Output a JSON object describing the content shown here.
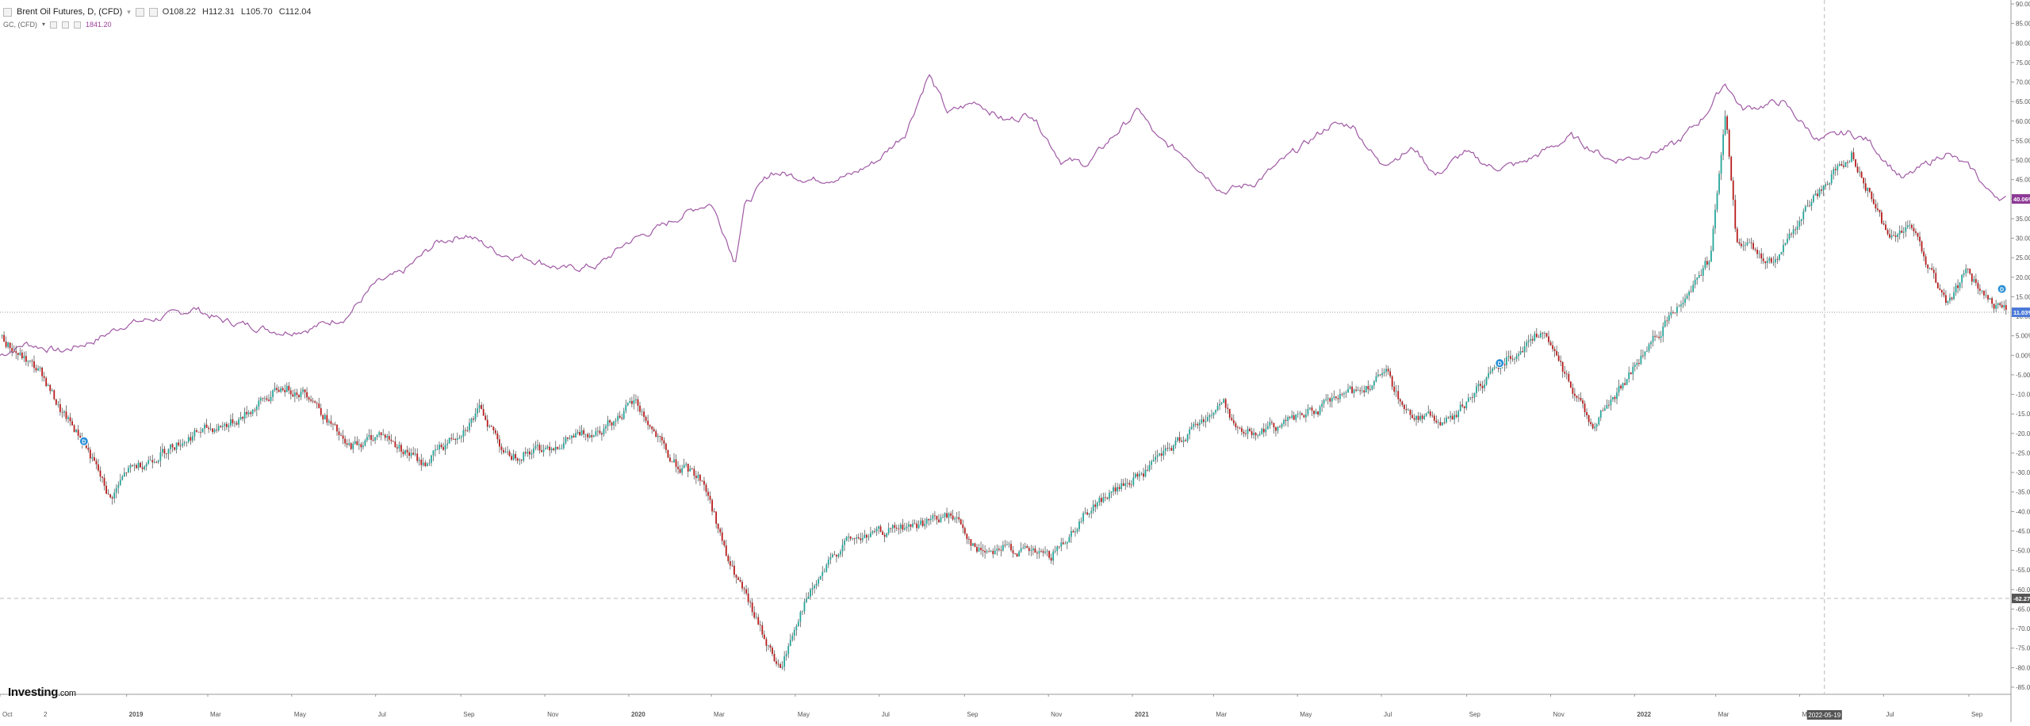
{
  "legend": {
    "main_symbol": "Brent Oil Futures, D, (CFD)",
    "ohlc": {
      "open": "O108.22",
      "high": "H112.31",
      "low": "L105.70",
      "close": "C112.04"
    },
    "compare_symbol": "GC, (CFD)",
    "compare_value": "1841.20"
  },
  "brand": {
    "name": "Investing",
    "suffix": ".com"
  },
  "colors": {
    "up": "#26a69a",
    "down": "#b71c1c",
    "wick": "#444444",
    "gold_line": "#a05aa5",
    "gold_badge": "#8e3a96",
    "oil_badge": "#4b79d8",
    "neutral_badge": "#555555",
    "axis_text": "#555555",
    "grid_dash": "#bbbbbb"
  },
  "chart_data": {
    "type": "line",
    "y_axis": {
      "unit": "%",
      "range": [
        -85,
        90
      ],
      "ticks": [
        "90.00%",
        "85.00%",
        "80.00%",
        "75.00%",
        "70.00%",
        "65.00%",
        "60.00%",
        "55.00%",
        "50.00%",
        "45.00%",
        "40.00%",
        "35.00%",
        "30.00%",
        "25.00%",
        "20.00%",
        "15.00%",
        "10.00%",
        "5.00%",
        "0.00%",
        "-5.00%",
        "-10.00%",
        "-15.00%",
        "-20.00%",
        "-25.00%",
        "-30.00%",
        "-35.00%",
        "-40.00%",
        "-45.00%",
        "-50.00%",
        "-55.00%",
        "-60.00%",
        "-65.00%",
        "-70.00%",
        "-75.00%",
        "-80.00%",
        "-85.00%"
      ],
      "tick_values": [
        90,
        85,
        80,
        75,
        70,
        65,
        60,
        55,
        50,
        45,
        40,
        35,
        30,
        25,
        20,
        15,
        10,
        5,
        0,
        -5,
        -10,
        -15,
        -20,
        -25,
        -30,
        -35,
        -40,
        -45,
        -50,
        -55,
        -60,
        -65,
        -70,
        -75,
        -80,
        -85
      ]
    },
    "x_axis": {
      "range": [
        "2018-10-01",
        "2022-10-01"
      ],
      "labels": [
        {
          "text": "Oct",
          "date": "2018-10-01",
          "bold": false
        },
        {
          "text": "2",
          "date": "2018-10-31",
          "bold": false
        },
        {
          "text": "2019",
          "date": "2019-01-01",
          "bold": true
        },
        {
          "text": "Mar",
          "date": "2019-03-01",
          "bold": false
        },
        {
          "text": "May",
          "date": "2019-05-01",
          "bold": false
        },
        {
          "text": "Jul",
          "date": "2019-07-01",
          "bold": false
        },
        {
          "text": "Sep",
          "date": "2019-09-01",
          "bold": false
        },
        {
          "text": "Nov",
          "date": "2019-11-01",
          "bold": false
        },
        {
          "text": "2020",
          "date": "2020-01-01",
          "bold": true
        },
        {
          "text": "Mar",
          "date": "2020-03-01",
          "bold": false
        },
        {
          "text": "May",
          "date": "2020-05-01",
          "bold": false
        },
        {
          "text": "Jul",
          "date": "2020-07-01",
          "bold": false
        },
        {
          "text": "Sep",
          "date": "2020-09-01",
          "bold": false
        },
        {
          "text": "Nov",
          "date": "2020-11-01",
          "bold": false
        },
        {
          "text": "2021",
          "date": "2021-01-01",
          "bold": true
        },
        {
          "text": "Mar",
          "date": "2021-03-01",
          "bold": false
        },
        {
          "text": "May",
          "date": "2021-05-01",
          "bold": false
        },
        {
          "text": "Jul",
          "date": "2021-07-01",
          "bold": false
        },
        {
          "text": "Sep",
          "date": "2021-09-01",
          "bold": false
        },
        {
          "text": "Nov",
          "date": "2021-11-01",
          "bold": false
        },
        {
          "text": "2022",
          "date": "2022-01-01",
          "bold": true
        },
        {
          "text": "Mar",
          "date": "2022-03-01",
          "bold": false
        },
        {
          "text": "May",
          "date": "2022-05-01",
          "bold": false
        },
        {
          "text": "Jul",
          "date": "2022-07-01",
          "bold": false
        },
        {
          "text": "Sep",
          "date": "2022-09-01",
          "bold": false
        }
      ],
      "crosshair_label": "2022-05-19",
      "crosshair_date": "2022-05-19"
    },
    "reference_lines": [
      {
        "value": 11.03,
        "label": "11.03%",
        "style": "dotted"
      },
      {
        "value": -62.27,
        "label": "-62.27",
        "style": "dashed"
      }
    ],
    "price_badges": [
      {
        "series": "Gold (GC)",
        "value": 40.06,
        "label": "40.06%"
      },
      {
        "series": "Brent Oil",
        "value": 11.03,
        "label": "11.03%"
      },
      {
        "series": "crosshair",
        "value": -62.27,
        "label": "-62.27"
      }
    ],
    "markers": [
      {
        "date": "2018-12-01",
        "value": -22,
        "label": "D"
      },
      {
        "date": "2021-09-25",
        "value": -2,
        "label": "D"
      },
      {
        "date": "2022-09-25",
        "value": 17,
        "label": "D"
      }
    ],
    "series": [
      {
        "name": "Gold (GC)",
        "style": "line",
        "points": [
          [
            "2018-10-01",
            0
          ],
          [
            "2018-10-20",
            3
          ],
          [
            "2018-11-15",
            1
          ],
          [
            "2018-12-10",
            4
          ],
          [
            "2018-12-31",
            8
          ],
          [
            "2019-01-31",
            10
          ],
          [
            "2019-02-20",
            12
          ],
          [
            "2019-03-10",
            9
          ],
          [
            "2019-04-10",
            7
          ],
          [
            "2019-04-25",
            6
          ],
          [
            "2019-05-15",
            7
          ],
          [
            "2019-06-10",
            10
          ],
          [
            "2019-06-30",
            18
          ],
          [
            "2019-07-20",
            21
          ],
          [
            "2019-08-15",
            29
          ],
          [
            "2019-09-05",
            31
          ],
          [
            "2019-09-30",
            26
          ],
          [
            "2019-10-20",
            25
          ],
          [
            "2019-11-15",
            22
          ],
          [
            "2019-12-10",
            23
          ],
          [
            "2019-12-31",
            29
          ],
          [
            "2020-01-25",
            33
          ],
          [
            "2020-02-20",
            38
          ],
          [
            "2020-03-01",
            39
          ],
          [
            "2020-03-12",
            30
          ],
          [
            "2020-03-18",
            24
          ],
          [
            "2020-03-25",
            38
          ],
          [
            "2020-04-14",
            47
          ],
          [
            "2020-05-15",
            45
          ],
          [
            "2020-06-10",
            46
          ],
          [
            "2020-06-30",
            50
          ],
          [
            "2020-07-20",
            57
          ],
          [
            "2020-08-06",
            72
          ],
          [
            "2020-08-20",
            62
          ],
          [
            "2020-09-10",
            65
          ],
          [
            "2020-10-01",
            60
          ],
          [
            "2020-10-20",
            62
          ],
          [
            "2020-11-10",
            50
          ],
          [
            "2020-11-30",
            49
          ],
          [
            "2020-12-15",
            55
          ],
          [
            "2021-01-06",
            63
          ],
          [
            "2021-01-20",
            55
          ],
          [
            "2021-02-10",
            51
          ],
          [
            "2021-03-08",
            42
          ],
          [
            "2021-03-30",
            44
          ],
          [
            "2021-04-25",
            51
          ],
          [
            "2021-05-25",
            59
          ],
          [
            "2021-06-10",
            59
          ],
          [
            "2021-06-30",
            49
          ],
          [
            "2021-07-25",
            53
          ],
          [
            "2021-08-10",
            46
          ],
          [
            "2021-08-30",
            52
          ],
          [
            "2021-09-20",
            48
          ],
          [
            "2021-10-10",
            49
          ],
          [
            "2021-11-16",
            56
          ],
          [
            "2021-12-15",
            50
          ],
          [
            "2022-01-05",
            51
          ],
          [
            "2022-01-31",
            54
          ],
          [
            "2022-02-20",
            61
          ],
          [
            "2022-03-08",
            70
          ],
          [
            "2022-03-20",
            63
          ],
          [
            "2022-04-18",
            65
          ],
          [
            "2022-05-15",
            55
          ],
          [
            "2022-06-05",
            57
          ],
          [
            "2022-06-20",
            55
          ],
          [
            "2022-07-15",
            45
          ],
          [
            "2022-08-15",
            52
          ],
          [
            "2022-09-05",
            47
          ],
          [
            "2022-09-15",
            42
          ],
          [
            "2022-09-28",
            40
          ]
        ]
      },
      {
        "name": "Brent Oil",
        "style": "candles",
        "points": [
          [
            "2018-10-01",
            5
          ],
          [
            "2018-10-15",
            0
          ],
          [
            "2018-11-01",
            -5
          ],
          [
            "2018-11-15",
            -15
          ],
          [
            "2018-12-01",
            -22
          ],
          [
            "2018-12-20",
            -37
          ],
          [
            "2019-01-01",
            -30
          ],
          [
            "2019-01-25",
            -25
          ],
          [
            "2019-02-20",
            -20
          ],
          [
            "2019-03-20",
            -17
          ],
          [
            "2019-04-25",
            -8
          ],
          [
            "2019-05-15",
            -10
          ],
          [
            "2019-06-10",
            -24
          ],
          [
            "2019-07-05",
            -20
          ],
          [
            "2019-08-05",
            -28
          ],
          [
            "2019-09-16",
            -14
          ],
          [
            "2019-10-05",
            -26
          ],
          [
            "2019-11-15",
            -22
          ],
          [
            "2019-12-15",
            -18
          ],
          [
            "2020-01-06",
            -12
          ],
          [
            "2020-01-31",
            -27
          ],
          [
            "2020-02-24",
            -32
          ],
          [
            "2020-03-06",
            -44
          ],
          [
            "2020-03-12",
            -52
          ],
          [
            "2020-03-31",
            -66
          ],
          [
            "2020-04-20",
            -81
          ],
          [
            "2020-05-05",
            -65
          ],
          [
            "2020-06-05",
            -48
          ],
          [
            "2020-07-10",
            -45
          ],
          [
            "2020-08-25",
            -41
          ],
          [
            "2020-09-10",
            -50
          ],
          [
            "2020-09-30",
            -49
          ],
          [
            "2020-11-02",
            -52
          ],
          [
            "2020-12-01",
            -39
          ],
          [
            "2021-01-10",
            -30
          ],
          [
            "2021-02-10",
            -20
          ],
          [
            "2021-03-08",
            -12
          ],
          [
            "2021-03-20",
            -20
          ],
          [
            "2021-04-15",
            -18
          ],
          [
            "2021-05-15",
            -14
          ],
          [
            "2021-07-05",
            -5
          ],
          [
            "2021-07-20",
            -15
          ],
          [
            "2021-08-20",
            -17
          ],
          [
            "2021-09-25",
            -2
          ],
          [
            "2021-10-25",
            6
          ],
          [
            "2021-11-20",
            -10
          ],
          [
            "2021-12-01",
            -18
          ],
          [
            "2021-12-20",
            -9
          ],
          [
            "2022-01-31",
            12
          ],
          [
            "2022-02-25",
            25
          ],
          [
            "2022-03-08",
            63
          ],
          [
            "2022-03-16",
            29
          ],
          [
            "2022-04-11",
            24
          ],
          [
            "2022-05-19",
            44
          ],
          [
            "2022-06-08",
            52
          ],
          [
            "2022-07-05",
            30
          ],
          [
            "2022-07-20",
            34
          ],
          [
            "2022-08-16",
            12
          ],
          [
            "2022-08-30",
            22
          ],
          [
            "2022-09-15",
            13
          ],
          [
            "2022-09-28",
            11
          ]
        ]
      }
    ]
  }
}
